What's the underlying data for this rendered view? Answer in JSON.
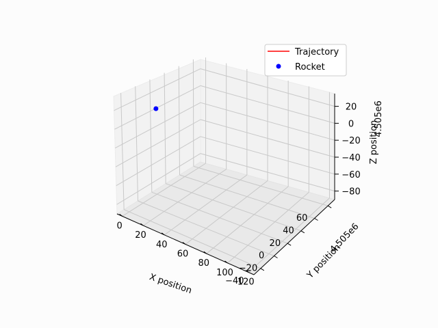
{
  "chart_data": {
    "type": "scatter",
    "projection": "3d",
    "title": "",
    "xlabel": "X position",
    "ylabel": "Y position",
    "zlabel": "Z position",
    "x_ticks": [
      "0",
      "20",
      "40",
      "60",
      "80",
      "100",
      "120"
    ],
    "y_ticks": [
      "−40",
      "−20",
      "0",
      "20",
      "40",
      "60"
    ],
    "z_ticks": [
      "−80",
      "−60",
      "−40",
      "−20",
      "0",
      "20"
    ],
    "y_offset_label": "4.505e6",
    "z_offset_label": "4.505e6",
    "xlim": [
      -5,
      125
    ],
    "ylim": [
      -50,
      70
    ],
    "zlim": [
      -90,
      35
    ],
    "grid": true,
    "legend_position": "top-right",
    "series": [
      {
        "name": "Trajectory",
        "kind": "line",
        "color": "#ff0000",
        "points": []
      },
      {
        "name": "Rocket",
        "kind": "marker",
        "color": "#0000ff",
        "points": [
          {
            "x": 0,
            "y": 0,
            "z": 0
          }
        ]
      }
    ]
  }
}
